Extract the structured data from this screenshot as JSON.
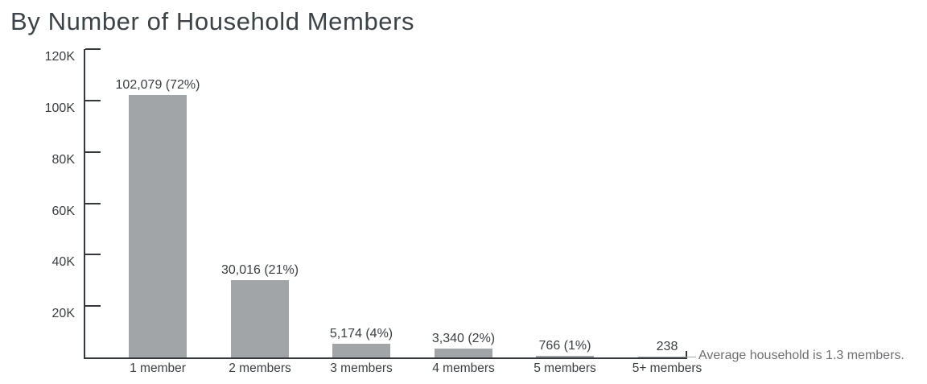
{
  "title": "By Number of Household Members",
  "annotation": "Average household is 1.3 members.",
  "colors": {
    "bar": "#a2a5a8",
    "axis": "#34383c",
    "text_dark": "#3a3e42",
    "title": "#3c4347",
    "muted": "#6e7073",
    "background": "#ffffff"
  },
  "chart_data": {
    "type": "bar",
    "title": "By Number of Household Members",
    "categories": [
      "1 member",
      "2 members",
      "3 members",
      "4 members",
      "5 members",
      "5+ members"
    ],
    "values": [
      102079,
      30016,
      5174,
      3340,
      766,
      238
    ],
    "value_labels": [
      "102,079 (72%)",
      "30,016 (21%)",
      "5,174 (4%)",
      "3,340 (2%)",
      "766 (1%)",
      "238"
    ],
    "percentages": [
      72,
      21,
      4,
      2,
      1,
      0
    ],
    "xlabel": "",
    "ylabel": "",
    "ylim": [
      0,
      120000
    ],
    "yticks": [
      20000,
      40000,
      60000,
      80000,
      100000,
      120000
    ],
    "ytick_labels": [
      "20K",
      "40K",
      "60K",
      "80K",
      "100K",
      "120K"
    ],
    "grid": false,
    "legend": false,
    "bar_orientation": "vertical",
    "annotation": "Average household is 1.3 members."
  }
}
